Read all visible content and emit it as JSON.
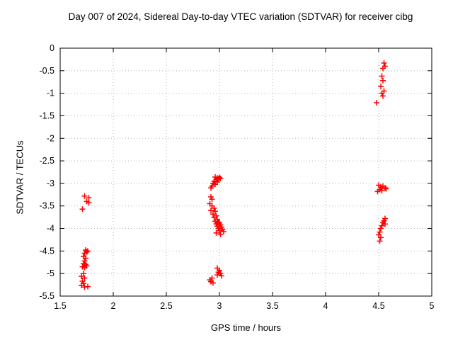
{
  "chart_data": {
    "type": "scatter",
    "title": "Day 007 of 2024, Sidereal Day-to-day VTEC variation (SDTVAR) for receiver cibg",
    "xlabel": "GPS time / hours",
    "ylabel": "SDTVAR / TECUs",
    "xlim": [
      1.5,
      5
    ],
    "ylim": [
      -5.5,
      0
    ],
    "xticks": [
      1.5,
      2,
      2.5,
      3,
      3.5,
      4,
      4.5,
      5
    ],
    "yticks": [
      0,
      -0.5,
      -1,
      -1.5,
      -2,
      -2.5,
      -3,
      -3.5,
      -4,
      -4.5,
      -5,
      -5.5
    ],
    "grid": true,
    "legend": "none",
    "marker": "plus",
    "marker_color": "#ff0000",
    "grid_color": "#b4b4b4",
    "border_color": "#000000",
    "series": [
      {
        "name": "SDTVAR",
        "points": [
          [
            1.73,
            -3.28
          ],
          [
            1.77,
            -3.32
          ],
          [
            1.75,
            -3.4
          ],
          [
            1.77,
            -3.43
          ],
          [
            1.71,
            -3.57
          ],
          [
            1.74,
            -4.48
          ],
          [
            1.75,
            -4.52
          ],
          [
            1.73,
            -4.55
          ],
          [
            1.76,
            -4.5
          ],
          [
            1.72,
            -4.62
          ],
          [
            1.74,
            -4.66
          ],
          [
            1.73,
            -4.72
          ],
          [
            1.72,
            -4.78
          ],
          [
            1.74,
            -4.8
          ],
          [
            1.71,
            -4.85
          ],
          [
            1.73,
            -4.87
          ],
          [
            1.75,
            -4.83
          ],
          [
            1.72,
            -5.0
          ],
          [
            1.7,
            -5.06
          ],
          [
            1.73,
            -5.1
          ],
          [
            1.71,
            -5.17
          ],
          [
            1.72,
            -5.22
          ],
          [
            1.7,
            -5.26
          ],
          [
            1.76,
            -5.29
          ],
          [
            1.73,
            -5.3
          ],
          [
            2.96,
            -2.86
          ],
          [
            2.98,
            -2.88
          ],
          [
            3.0,
            -2.87
          ],
          [
            2.99,
            -2.9
          ],
          [
            3.01,
            -2.89
          ],
          [
            2.97,
            -2.92
          ],
          [
            2.95,
            -2.95
          ],
          [
            2.98,
            -2.97
          ],
          [
            2.94,
            -3.0
          ],
          [
            2.96,
            -3.02
          ],
          [
            2.93,
            -3.06
          ],
          [
            2.92,
            -3.1
          ],
          [
            2.92,
            -3.3
          ],
          [
            2.93,
            -3.35
          ],
          [
            2.91,
            -3.45
          ],
          [
            2.93,
            -3.5
          ],
          [
            2.95,
            -3.55
          ],
          [
            2.92,
            -3.6
          ],
          [
            2.96,
            -3.62
          ],
          [
            2.94,
            -3.68
          ],
          [
            2.97,
            -3.72
          ],
          [
            2.95,
            -3.76
          ],
          [
            2.98,
            -3.8
          ],
          [
            2.96,
            -3.84
          ],
          [
            2.99,
            -3.86
          ],
          [
            3.0,
            -3.88
          ],
          [
            2.97,
            -3.9
          ],
          [
            3.01,
            -3.92
          ],
          [
            2.98,
            -3.95
          ],
          [
            3.02,
            -3.97
          ],
          [
            2.99,
            -4.0
          ],
          [
            3.03,
            -4.02
          ],
          [
            3.0,
            -4.05
          ],
          [
            3.04,
            -4.07
          ],
          [
            2.97,
            -4.1
          ],
          [
            3.01,
            -4.13
          ],
          [
            2.98,
            -4.88
          ],
          [
            3.0,
            -4.93
          ],
          [
            2.99,
            -4.97
          ],
          [
            3.01,
            -5.0
          ],
          [
            2.98,
            -5.03
          ],
          [
            3.02,
            -5.05
          ],
          [
            2.93,
            -5.1
          ],
          [
            2.91,
            -5.14
          ],
          [
            2.92,
            -5.18
          ],
          [
            2.94,
            -5.21
          ],
          [
            4.55,
            -0.33
          ],
          [
            4.56,
            -0.4
          ],
          [
            4.54,
            -0.45
          ],
          [
            4.53,
            -0.62
          ],
          [
            4.54,
            -0.72
          ],
          [
            4.52,
            -0.85
          ],
          [
            4.55,
            -0.95
          ],
          [
            4.53,
            -1.0
          ],
          [
            4.54,
            -1.06
          ],
          [
            4.48,
            -1.21
          ],
          [
            4.5,
            -3.04
          ],
          [
            4.52,
            -3.08
          ],
          [
            4.54,
            -3.06
          ],
          [
            4.56,
            -3.1
          ],
          [
            4.57,
            -3.12
          ],
          [
            4.51,
            -3.14
          ],
          [
            4.49,
            -3.18
          ],
          [
            4.53,
            -3.16
          ],
          [
            4.56,
            -3.78
          ],
          [
            4.55,
            -3.83
          ],
          [
            4.54,
            -3.87
          ],
          [
            4.56,
            -3.9
          ],
          [
            4.53,
            -3.94
          ],
          [
            4.52,
            -4.0
          ],
          [
            4.51,
            -4.08
          ],
          [
            4.5,
            -4.14
          ],
          [
            4.52,
            -4.2
          ],
          [
            4.51,
            -4.28
          ]
        ]
      }
    ]
  }
}
